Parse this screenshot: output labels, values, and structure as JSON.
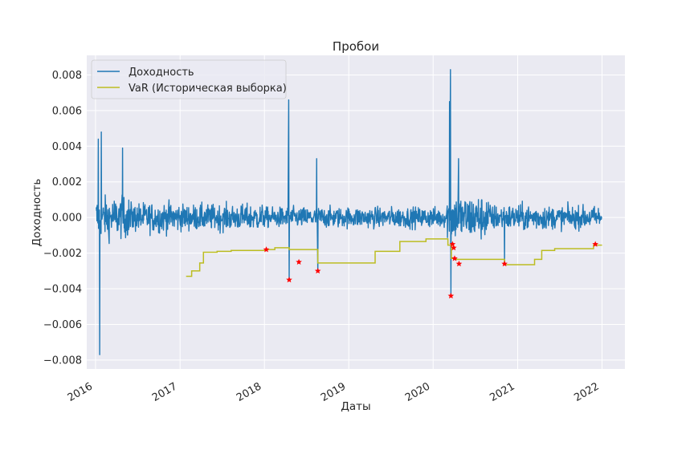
{
  "chart_data": {
    "type": "line",
    "title": "Пробои",
    "xlabel": "Даты",
    "ylabel": "Доходность",
    "xlim": [
      "2015-11-24",
      "2022-04-10"
    ],
    "ylim": [
      -0.0085,
      0.0091
    ],
    "x_ticks": [
      "2016",
      "2017",
      "2018",
      "2019",
      "2020",
      "2021",
      "2022"
    ],
    "y_ticks": [
      -0.008,
      -0.006,
      -0.004,
      -0.002,
      0.0,
      0.002,
      0.004,
      0.006,
      0.008
    ],
    "y_tick_labels": [
      "−0.008",
      "−0.006",
      "−0.004",
      "−0.002",
      "0.000",
      "0.002",
      "0.004",
      "0.006",
      "0.008"
    ],
    "grid": true,
    "legend_position": "top-left",
    "colors": {
      "returns": "#1f77b4",
      "var": "#bcbd22",
      "breach": "#ff0000",
      "plot_bg": "#eaeaf2",
      "grid": "#ffffff"
    },
    "series": [
      {
        "name": "Доходность",
        "kind": "line",
        "note": "daily series approximated by envelope + noise",
        "start": "2016-01-04",
        "end": "2021-12-30",
        "spikes": [
          [
            "2016-01-19",
            -0.0077
          ],
          [
            "2016-01-13",
            0.0044
          ],
          [
            "2016-01-26",
            0.0048
          ],
          [
            "2016-04-27",
            0.0039
          ],
          [
            "2018-04-16",
            0.0066
          ],
          [
            "2018-04-18",
            -0.0035
          ],
          [
            "2018-08-15",
            0.0033
          ],
          [
            "2018-08-20",
            -0.003
          ],
          [
            "2020-03-16",
            0.0083
          ],
          [
            "2020-03-18",
            -0.0044
          ],
          [
            "2020-03-12",
            0.0065
          ],
          [
            "2020-04-20",
            0.0033
          ],
          [
            "2020-11-05",
            -0.0026
          ]
        ]
      },
      {
        "name": "VaR (Историческая выборка)",
        "kind": "step",
        "points": [
          [
            "2017-01-27",
            -0.0033
          ],
          [
            "2017-02-20",
            -0.003
          ],
          [
            "2017-03-27",
            -0.00255
          ],
          [
            "2017-04-12",
            -0.00195
          ],
          [
            "2017-06-10",
            -0.0019
          ],
          [
            "2017-08-10",
            -0.00185
          ],
          [
            "2018-01-10",
            -0.0018
          ],
          [
            "2018-02-15",
            -0.0017
          ],
          [
            "2018-04-18",
            -0.0018
          ],
          [
            "2018-08-20",
            -0.00255
          ],
          [
            "2019-04-25",
            -0.0019
          ],
          [
            "2019-08-10",
            -0.00135
          ],
          [
            "2019-12-01",
            -0.0012
          ],
          [
            "2020-03-05",
            -0.00155
          ],
          [
            "2020-03-20",
            -0.0023
          ],
          [
            "2020-04-10",
            -0.00235
          ],
          [
            "2020-11-05",
            -0.00265
          ],
          [
            "2021-03-15",
            -0.00235
          ],
          [
            "2021-04-15",
            -0.00185
          ],
          [
            "2021-06-10",
            -0.00175
          ],
          [
            "2021-11-25",
            -0.00155
          ],
          [
            "2022-01-01",
            -0.00155
          ]
        ]
      }
    ],
    "breaches": [
      [
        "2018-01-09",
        -0.0018
      ],
      [
        "2018-04-18",
        -0.0035
      ],
      [
        "2018-05-30",
        -0.0025
      ],
      [
        "2018-08-20",
        -0.003
      ],
      [
        "2020-03-18",
        -0.0044
      ],
      [
        "2020-03-25",
        -0.0015
      ],
      [
        "2020-03-30",
        -0.0017
      ],
      [
        "2020-04-03",
        -0.0023
      ],
      [
        "2020-04-22",
        -0.0026
      ],
      [
        "2020-11-05",
        -0.0026
      ],
      [
        "2021-12-03",
        -0.0015
      ]
    ]
  }
}
